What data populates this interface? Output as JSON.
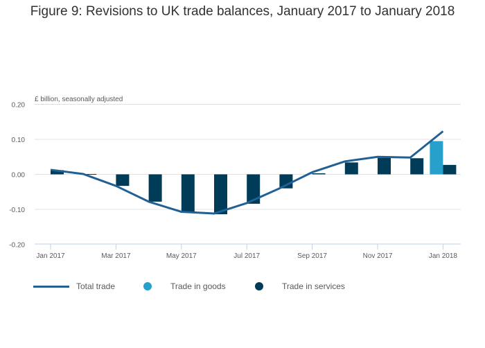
{
  "chart_data": {
    "type": "bar+line",
    "title": "Figure 9: Revisions to UK trade balances, January 2017 to January 2018",
    "ylabel": "£ billion, seasonally adjusted",
    "ylim": [
      -0.2,
      0.2
    ],
    "yticks": [
      "0.20",
      "0.10",
      "0.00",
      "-0.10",
      "-0.20"
    ],
    "ytick_values": [
      0.2,
      0.1,
      0,
      -0.1,
      -0.2
    ],
    "categories": [
      "Jan 2017",
      "Feb 2017",
      "Mar 2017",
      "Apr 2017",
      "May 2017",
      "Jun 2017",
      "Jul 2017",
      "Aug 2017",
      "Sep 2017",
      "Oct 2017",
      "Nov 2017",
      "Dec 2017",
      "Jan 2018"
    ],
    "xtick_labels": [
      "Jan 2017",
      "Mar 2017",
      "May 2017",
      "Jul 2017",
      "Sep 2017",
      "Nov 2017",
      "Jan 2018"
    ],
    "series": [
      {
        "name": "Total trade",
        "type": "line",
        "color": "#206095",
        "values": [
          0.013,
          0.001,
          -0.033,
          -0.078,
          -0.107,
          -0.112,
          -0.082,
          -0.04,
          0.006,
          0.037,
          0.05,
          0.048,
          0.123
        ]
      },
      {
        "name": "Trade in goods",
        "type": "bar",
        "color": "#27a0cc",
        "values": [
          0,
          0,
          0,
          0,
          0,
          0,
          0,
          0,
          0,
          0,
          0,
          0,
          0.095
        ]
      },
      {
        "name": "Trade in services",
        "type": "bar",
        "color": "#003c57",
        "values": [
          0.012,
          0.001,
          -0.033,
          -0.078,
          -0.107,
          -0.114,
          -0.084,
          -0.04,
          0.003,
          0.034,
          0.047,
          0.046,
          0.027
        ]
      }
    ],
    "grid": true,
    "legend": "bottom"
  }
}
